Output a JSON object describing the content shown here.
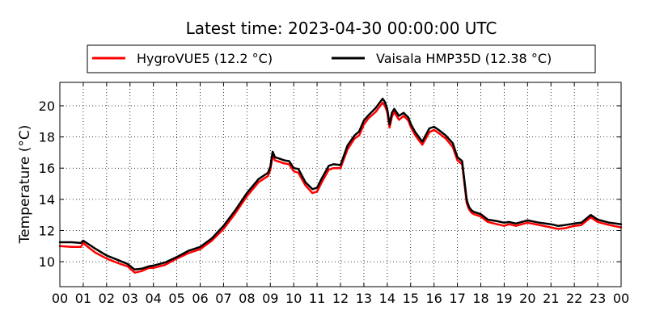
{
  "chart_data": {
    "type": "line",
    "title": "Latest time: 2023-04-30 00:00:00 UTC",
    "xlabel": "",
    "ylabel": "Temperature (°C)",
    "xlim": [
      0,
      24
    ],
    "ylim": [
      8.4,
      21.5
    ],
    "grid": true,
    "grid_style": "dotted",
    "legend_position": "top (above plot, two columns)",
    "x_ticks": [
      0,
      1,
      2,
      3,
      4,
      5,
      6,
      7,
      8,
      9,
      10,
      11,
      12,
      13,
      14,
      15,
      16,
      17,
      18,
      19,
      20,
      21,
      22,
      23,
      24
    ],
    "x_tick_labels": [
      "00",
      "01",
      "02",
      "03",
      "04",
      "05",
      "06",
      "07",
      "08",
      "09",
      "10",
      "11",
      "12",
      "13",
      "14",
      "15",
      "16",
      "17",
      "18",
      "19",
      "20",
      "21",
      "22",
      "23",
      "00"
    ],
    "y_ticks": [
      10,
      12,
      14,
      16,
      18,
      20
    ],
    "y_tick_labels": [
      "10",
      "12",
      "14",
      "16",
      "18",
      "20"
    ],
    "series": [
      {
        "name": "HygroVUE5 (12.2 °C)",
        "color": "#ff0000",
        "x": [
          0,
          0.5,
          0.9,
          1.0,
          1.2,
          1.5,
          2.0,
          2.5,
          2.9,
          3.2,
          3.5,
          3.8,
          4.0,
          4.5,
          5.0,
          5.5,
          6.0,
          6.5,
          7.0,
          7.5,
          8.0,
          8.5,
          8.9,
          9.0,
          9.1,
          9.2,
          9.4,
          9.6,
          9.8,
          10.0,
          10.2,
          10.5,
          10.8,
          11.0,
          11.2,
          11.5,
          11.7,
          12.0,
          12.3,
          12.6,
          12.8,
          13.0,
          13.2,
          13.5,
          13.7,
          13.8,
          13.9,
          14.0,
          14.1,
          14.2,
          14.3,
          14.5,
          14.7,
          14.9,
          15.0,
          15.2,
          15.5,
          15.8,
          16.0,
          16.2,
          16.5,
          16.8,
          17.0,
          17.2,
          17.4,
          17.5,
          17.6,
          17.7,
          17.8,
          18.0,
          18.3,
          18.7,
          19.0,
          19.2,
          19.5,
          20.0,
          20.5,
          21.0,
          21.3,
          21.6,
          22.0,
          22.3,
          22.7,
          23.0,
          23.5,
          24.0
        ],
        "y": [
          11.0,
          10.95,
          10.95,
          11.2,
          10.95,
          10.6,
          10.2,
          9.9,
          9.7,
          9.3,
          9.4,
          9.6,
          9.6,
          9.8,
          10.2,
          10.55,
          10.8,
          11.35,
          12.1,
          13.1,
          14.2,
          15.1,
          15.5,
          15.9,
          16.8,
          16.5,
          16.4,
          16.3,
          16.25,
          15.8,
          15.7,
          14.9,
          14.4,
          14.5,
          15.1,
          15.9,
          16.0,
          16.0,
          17.2,
          17.9,
          18.1,
          18.8,
          19.2,
          19.6,
          20.0,
          20.2,
          20.0,
          19.6,
          18.6,
          19.3,
          19.6,
          19.1,
          19.35,
          19.05,
          18.65,
          18.1,
          17.5,
          18.3,
          18.45,
          18.25,
          17.9,
          17.35,
          16.5,
          16.25,
          13.75,
          13.35,
          13.15,
          13.05,
          13.0,
          12.9,
          12.55,
          12.4,
          12.3,
          12.4,
          12.3,
          12.5,
          12.35,
          12.2,
          12.1,
          12.15,
          12.3,
          12.35,
          12.85,
          12.55,
          12.35,
          12.2
        ]
      },
      {
        "name": "Vaisala HMP35D (12.38 °C)",
        "color": "#000000",
        "x": [
          0,
          0.5,
          0.9,
          1.0,
          1.2,
          1.5,
          2.0,
          2.5,
          2.9,
          3.2,
          3.5,
          3.8,
          4.0,
          4.5,
          5.0,
          5.5,
          6.0,
          6.5,
          7.0,
          7.5,
          8.0,
          8.5,
          8.9,
          9.0,
          9.1,
          9.2,
          9.4,
          9.6,
          9.8,
          10.0,
          10.2,
          10.5,
          10.8,
          11.0,
          11.2,
          11.5,
          11.7,
          12.0,
          12.3,
          12.6,
          12.8,
          13.0,
          13.2,
          13.5,
          13.7,
          13.8,
          13.9,
          14.0,
          14.1,
          14.2,
          14.3,
          14.5,
          14.7,
          14.9,
          15.0,
          15.2,
          15.5,
          15.8,
          16.0,
          16.2,
          16.5,
          16.8,
          17.0,
          17.2,
          17.4,
          17.5,
          17.6,
          17.7,
          17.8,
          18.0,
          18.3,
          18.7,
          19.0,
          19.2,
          19.5,
          20.0,
          20.5,
          21.0,
          21.3,
          21.6,
          22.0,
          22.3,
          22.7,
          23.0,
          23.5,
          24.0
        ],
        "y": [
          11.25,
          11.25,
          11.2,
          11.35,
          11.15,
          10.85,
          10.4,
          10.1,
          9.85,
          9.5,
          9.55,
          9.7,
          9.75,
          9.95,
          10.3,
          10.7,
          10.95,
          11.5,
          12.3,
          13.3,
          14.4,
          15.3,
          15.7,
          16.1,
          17.05,
          16.7,
          16.6,
          16.5,
          16.45,
          16.0,
          15.95,
          15.1,
          14.65,
          14.75,
          15.35,
          16.15,
          16.25,
          16.2,
          17.45,
          18.1,
          18.35,
          19.05,
          19.4,
          19.85,
          20.25,
          20.45,
          20.25,
          19.8,
          18.8,
          19.55,
          19.8,
          19.35,
          19.55,
          19.25,
          18.85,
          18.3,
          17.7,
          18.55,
          18.65,
          18.45,
          18.1,
          17.6,
          16.7,
          16.45,
          13.95,
          13.5,
          13.3,
          13.2,
          13.15,
          13.05,
          12.7,
          12.6,
          12.5,
          12.55,
          12.45,
          12.65,
          12.5,
          12.4,
          12.3,
          12.35,
          12.45,
          12.5,
          13.0,
          12.7,
          12.5,
          12.4
        ]
      }
    ]
  }
}
